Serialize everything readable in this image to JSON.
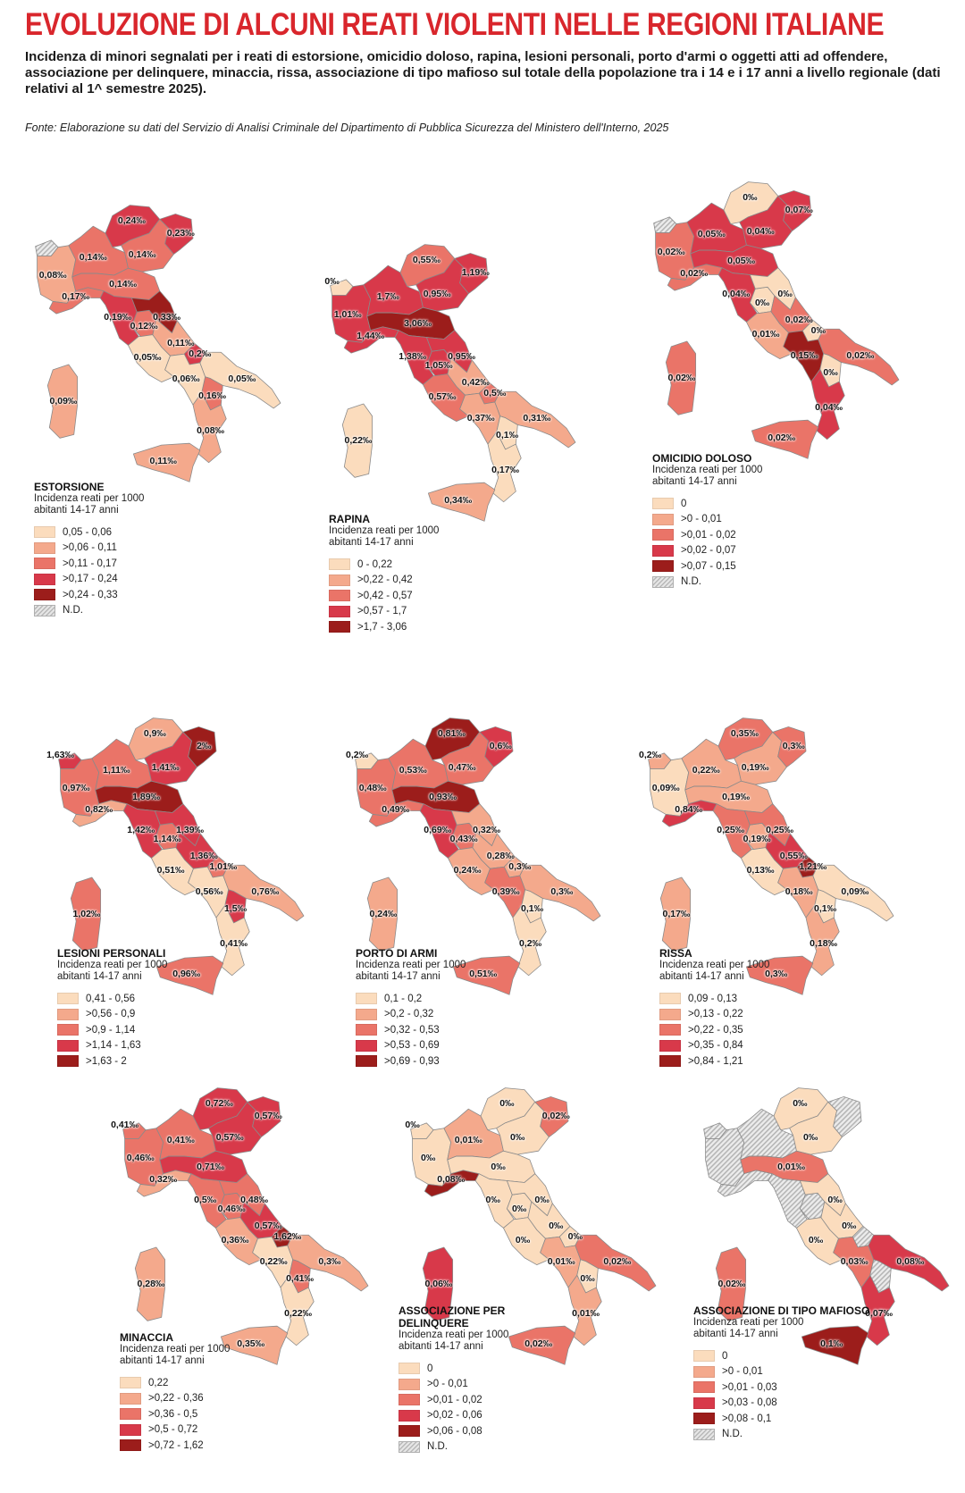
{
  "header": {
    "title": "EVOLUZIONE DI ALCUNI REATI VIOLENTI NELLE REGIONI ITALIANE",
    "subtitle": "Incidenza di minori segnalati per i reati di estorsione, omicidio doloso, rapina, lesioni personali, porto d'armi o oggetti atti ad offendere, associazione per delinquere, minaccia, rissa, associazione di tipo mafioso sul totale della popolazione tra i 14 e i 17 anni a livello regionale (dati relativi al 1^ semestre 2025).",
    "source": "Fonte: Elaborazione su dati del Servizio di Analisi Criminale del Dipartimento di Pubblica Sicurezza del Ministero dell'Interno, 2025"
  },
  "palette": [
    "#fbdcbd",
    "#f4a98c",
    "#ea7468",
    "#d8394a",
    "#9c1d1b"
  ],
  "nd_color": "#dcdcdc",
  "maps": [
    {
      "id": "estorsione",
      "title": "ESTORSIONE",
      "subtitle": "Incidenza reati per 1000 abitanti 14-17 anni",
      "legend": [
        "0,05 - 0,06",
        ">0,06 - 0,11",
        ">0,11 - 0,17",
        ">0,17 - 0,24",
        ">0,24 - 0,33"
      ],
      "nd_label": "N.D.",
      "values": {
        "VDA": "",
        "PIE": "0,08‰",
        "LOM": "0,14‰",
        "TAA": "0,24‰",
        "VEN": "0,14‰",
        "FVG": "0,23‰",
        "LIG": "0,17‰",
        "EMR": "0,14‰",
        "TOS": "0,19‰",
        "UMB": "0,12‰",
        "MAR": "0,33‰",
        "LAZ": "0,05‰",
        "ABR": "0,11‰",
        "MOL": "0,2‰",
        "CAM": "0,06‰",
        "PUG": "0,05‰",
        "BAS": "0,16‰",
        "CAL": "0,08‰",
        "SIC": "0,11‰",
        "SAR": "0,09‰"
      },
      "classes": {
        "VDA": -1,
        "PIE": 1,
        "LOM": 2,
        "TAA": 3,
        "VEN": 2,
        "FVG": 3,
        "LIG": 2,
        "EMR": 2,
        "TOS": 3,
        "UMB": 2,
        "MAR": 4,
        "LAZ": 0,
        "ABR": 1,
        "MOL": 3,
        "CAM": 0,
        "PUG": 0,
        "BAS": 2,
        "CAL": 1,
        "SIC": 1,
        "SAR": 1
      }
    },
    {
      "id": "rapina",
      "title": "RAPINA",
      "subtitle": "Incidenza reati per 1000 abitanti 14-17 anni",
      "legend": [
        "0 - 0,22",
        ">0,22 - 0,42",
        ">0,42 - 0,57",
        ">0,57 - 1,7",
        ">1,7 - 3,06"
      ],
      "nd_label": "",
      "values": {
        "VDA": "0‰",
        "PIE": "1,01‰",
        "LOM": "1,7‰",
        "TAA": "0,55‰",
        "VEN": "0,95‰",
        "FVG": "1,19‰",
        "LIG": "1,44‰",
        "EMR": "3,06‰",
        "TOS": "1,38‰",
        "UMB": "1,05‰",
        "MAR": "0,95‰",
        "LAZ": "0,57‰",
        "ABR": "0,42‰",
        "MOL": "0,5‰",
        "CAM": "0,37‰",
        "PUG": "0,31‰",
        "BAS": "0,1‰",
        "CAL": "0,17‰",
        "SIC": "0,34‰",
        "SAR": "0,22‰"
      },
      "classes": {
        "VDA": 0,
        "PIE": 3,
        "LOM": 3,
        "TAA": 2,
        "VEN": 3,
        "FVG": 3,
        "LIG": 3,
        "EMR": 4,
        "TOS": 3,
        "UMB": 3,
        "MAR": 3,
        "LAZ": 2,
        "ABR": 1,
        "MOL": 2,
        "CAM": 1,
        "PUG": 1,
        "BAS": 0,
        "CAL": 0,
        "SIC": 1,
        "SAR": 0
      }
    },
    {
      "id": "omicidio",
      "title": "OMICIDIO DOLOSO",
      "subtitle": "Incidenza reati per 1000 abitanti 14-17 anni",
      "legend": [
        "0",
        ">0 - 0,01",
        ">0,01 - 0,02",
        ">0,02 - 0,07",
        ">0,07 - 0,15"
      ],
      "nd_label": "N.D.",
      "values": {
        "VDA": "",
        "PIE": "0,02‰",
        "LOM": "0,05‰",
        "TAA": "0‰",
        "VEN": "0,04‰",
        "FVG": "0,07‰",
        "LIG": "0,02‰",
        "EMR": "0,05‰",
        "TOS": "0,04‰",
        "UMB": "0‰",
        "MAR": "0‰",
        "LAZ": "0,01‰",
        "ABR": "0,02‰",
        "MOL": "0‰",
        "CAM": "0,15‰",
        "PUG": "0,02‰",
        "BAS": "0‰",
        "CAL": "0,04‰",
        "SIC": "0,02‰",
        "SAR": "0,02‰"
      },
      "classes": {
        "VDA": -1,
        "PIE": 2,
        "LOM": 3,
        "TAA": 0,
        "VEN": 3,
        "FVG": 3,
        "LIG": 2,
        "EMR": 3,
        "TOS": 3,
        "UMB": 0,
        "MAR": 0,
        "LAZ": 1,
        "ABR": 2,
        "MOL": 0,
        "CAM": 4,
        "PUG": 2,
        "BAS": 0,
        "CAL": 3,
        "SIC": 2,
        "SAR": 2
      }
    },
    {
      "id": "lesioni",
      "title": "LESIONI PERSONALI",
      "subtitle": "Incidenza reati per 1000 abitanti 14-17 anni",
      "legend": [
        "0,41 - 0,56",
        ">0,56 - 0,9",
        ">0,9 - 1,14",
        ">1,14 - 1,63",
        ">1,63 - 2"
      ],
      "nd_label": "",
      "values": {
        "VDA": "1,63‰",
        "PIE": "0,97‰",
        "LOM": "1,11‰",
        "TAA": "0,9‰",
        "VEN": "1,41‰",
        "FVG": "2‰",
        "LIG": "0,82‰",
        "EMR": "1,89‰",
        "TOS": "1,42‰",
        "UMB": "1,14‰",
        "MAR": "1,39‰",
        "LAZ": "0,51‰",
        "ABR": "1,36‰",
        "MOL": "1,01‰",
        "CAM": "0,56‰",
        "PUG": "0,76‰",
        "BAS": "1,5‰",
        "CAL": "0,41‰",
        "SIC": "0,96‰",
        "SAR": "1,02‰"
      },
      "classes": {
        "VDA": 3,
        "PIE": 2,
        "LOM": 2,
        "TAA": 1,
        "VEN": 3,
        "FVG": 4,
        "LIG": 1,
        "EMR": 4,
        "TOS": 3,
        "UMB": 2,
        "MAR": 3,
        "LAZ": 0,
        "ABR": 3,
        "MOL": 2,
        "CAM": 0,
        "PUG": 1,
        "BAS": 3,
        "CAL": 0,
        "SIC": 2,
        "SAR": 2
      }
    },
    {
      "id": "porto",
      "title": "PORTO DI ARMI",
      "subtitle": "Incidenza reati per 1000 abitanti 14-17 anni",
      "legend": [
        "0,1 - 0,2",
        ">0,2 - 0,32",
        ">0,32 - 0,53",
        ">0,53 - 0,69",
        ">0,69 - 0,93"
      ],
      "nd_label": "",
      "values": {
        "VDA": "0,2‰",
        "PIE": "0,48‰",
        "LOM": "0,53‰",
        "TAA": "0,81‰",
        "VEN": "0,47‰",
        "FVG": "0,6‰",
        "LIG": "0,49‰",
        "EMR": "0,93‰",
        "TOS": "0,69‰",
        "UMB": "0,43‰",
        "MAR": "0,32‰",
        "LAZ": "0,24‰",
        "ABR": "0,28‰",
        "MOL": "0,3‰",
        "CAM": "0,39‰",
        "PUG": "0,3‰",
        "BAS": "0,1‰",
        "CAL": "0,2‰",
        "SIC": "0,51‰",
        "SAR": "0,24‰"
      },
      "classes": {
        "VDA": 0,
        "PIE": 2,
        "LOM": 2,
        "TAA": 4,
        "VEN": 2,
        "FVG": 3,
        "LIG": 2,
        "EMR": 4,
        "TOS": 3,
        "UMB": 2,
        "MAR": 1,
        "LAZ": 1,
        "ABR": 1,
        "MOL": 1,
        "CAM": 2,
        "PUG": 1,
        "BAS": 0,
        "CAL": 0,
        "SIC": 2,
        "SAR": 1
      }
    },
    {
      "id": "rissa",
      "title": "RISSA",
      "subtitle": "Incidenza reati per 1000 abitanti 14-17 anni",
      "legend": [
        "0,09 - 0,13",
        ">0,13 - 0,22",
        ">0,22 - 0,35",
        ">0,35 - 0,84",
        ">0,84 - 1,21"
      ],
      "nd_label": "",
      "values": {
        "VDA": "0,2‰",
        "PIE": "0,09‰",
        "LOM": "0,22‰",
        "TAA": "0,35‰",
        "VEN": "0,19‰",
        "FVG": "0,3‰",
        "LIG": "0,84‰",
        "EMR": "0,19‰",
        "TOS": "0,25‰",
        "UMB": "0,19‰",
        "MAR": "0,25‰",
        "LAZ": "0,13‰",
        "ABR": "0,55‰",
        "MOL": "1,21‰",
        "CAM": "0,18‰",
        "PUG": "0,09‰",
        "BAS": "0,1‰",
        "CAL": "0,18‰",
        "SIC": "0,3‰",
        "SAR": "0,17‰"
      },
      "classes": {
        "VDA": 1,
        "PIE": 0,
        "LOM": 1,
        "TAA": 2,
        "VEN": 1,
        "FVG": 2,
        "LIG": 3,
        "EMR": 1,
        "TOS": 2,
        "UMB": 1,
        "MAR": 2,
        "LAZ": 0,
        "ABR": 3,
        "MOL": 4,
        "CAM": 1,
        "PUG": 0,
        "BAS": 0,
        "CAL": 1,
        "SIC": 2,
        "SAR": 1
      }
    },
    {
      "id": "minaccia",
      "title": "MINACCIA",
      "subtitle": "Incidenza reati per 1000 abitanti 14-17 anni",
      "legend": [
        "0,22",
        ">0,22 - 0,36",
        ">0,36 - 0,5",
        ">0,5 - 0,72",
        ">0,72 - 1,62"
      ],
      "nd_label": "",
      "values": {
        "VDA": "0,41‰",
        "PIE": "0,46‰",
        "LOM": "0,41‰",
        "TAA": "0,72‰",
        "VEN": "0,57‰",
        "FVG": "0,57‰",
        "LIG": "0,32‰",
        "EMR": "0,71‰",
        "TOS": "0,5‰",
        "UMB": "0,46‰",
        "MAR": "0,48‰",
        "LAZ": "0,36‰",
        "ABR": "0,57‰",
        "MOL": "1,62‰",
        "CAM": "0,22‰",
        "PUG": "0,3‰",
        "BAS": "0,41‰",
        "CAL": "0,22‰",
        "SIC": "0,35‰",
        "SAR": "0,28‰"
      },
      "classes": {
        "VDA": 2,
        "PIE": 2,
        "LOM": 2,
        "TAA": 3,
        "VEN": 3,
        "FVG": 3,
        "LIG": 1,
        "EMR": 3,
        "TOS": 2,
        "UMB": 2,
        "MAR": 2,
        "LAZ": 1,
        "ABR": 3,
        "MOL": 4,
        "CAM": 0,
        "PUG": 1,
        "BAS": 2,
        "CAL": 0,
        "SIC": 1,
        "SAR": 1
      }
    },
    {
      "id": "associazione",
      "title": "ASSOCIAZIONE PER DELINQUERE",
      "subtitle": "Incidenza reati per 1000 abitanti 14-17 anni",
      "legend": [
        "0",
        ">0 - 0,01",
        ">0,01 - 0,02",
        ">0,02 - 0,06",
        ">0,06 - 0,08"
      ],
      "nd_label": "N.D.",
      "values": {
        "VDA": "0‰",
        "PIE": "0‰",
        "LOM": "0,01‰",
        "TAA": "0‰",
        "VEN": "0‰",
        "FVG": "0,02‰",
        "LIG": "0,08‰",
        "EMR": "0‰",
        "TOS": "0‰",
        "UMB": "0‰",
        "MAR": "0‰",
        "LAZ": "0‰",
        "ABR": "0‰",
        "MOL": "0‰",
        "CAM": "0,01‰",
        "PUG": "0,02‰",
        "BAS": "0‰",
        "CAL": "0,01‰",
        "SIC": "0,02‰",
        "SAR": "0,06‰"
      },
      "classes": {
        "VDA": 0,
        "PIE": 0,
        "LOM": 1,
        "TAA": 0,
        "VEN": 0,
        "FVG": 2,
        "LIG": 4,
        "EMR": 0,
        "TOS": 0,
        "UMB": 0,
        "MAR": 0,
        "LAZ": 0,
        "ABR": 0,
        "MOL": 0,
        "CAM": 1,
        "PUG": 2,
        "BAS": 0,
        "CAL": 1,
        "SIC": 2,
        "SAR": 3
      }
    },
    {
      "id": "mafioso",
      "title": "ASSOCIAZIONE DI TIPO MAFIOSO",
      "subtitle": "Incidenza reati per 1000 abitanti 14-17 anni",
      "legend": [
        "0",
        ">0 - 0,01",
        ">0,01 - 0,03",
        ">0,03 - 0,08",
        ">0,08 - 0,1"
      ],
      "nd_label": "N.D.",
      "values": {
        "VDA": "",
        "PIE": "",
        "LOM": "",
        "TAA": "0‰",
        "VEN": "0‰",
        "FVG": "",
        "LIG": "",
        "EMR": "0,01‰",
        "TOS": "",
        "UMB": "",
        "MAR": "0‰",
        "LAZ": "0‰",
        "ABR": "0‰",
        "MOL": "",
        "CAM": "0,03‰",
        "PUG": "0,08‰",
        "BAS": "",
        "CAL": "0,07‰",
        "SIC": "0,1‰",
        "SAR": "0,02‰"
      },
      "classes": {
        "VDA": -1,
        "PIE": -1,
        "LOM": -1,
        "TAA": 0,
        "VEN": 0,
        "FVG": -1,
        "LIG": -1,
        "EMR": 2,
        "TOS": -1,
        "UMB": -1,
        "MAR": 0,
        "LAZ": 0,
        "ABR": 0,
        "MOL": -1,
        "CAM": 2,
        "PUG": 3,
        "BAS": -1,
        "CAL": 3,
        "SIC": 4,
        "SAR": 2
      }
    }
  ]
}
